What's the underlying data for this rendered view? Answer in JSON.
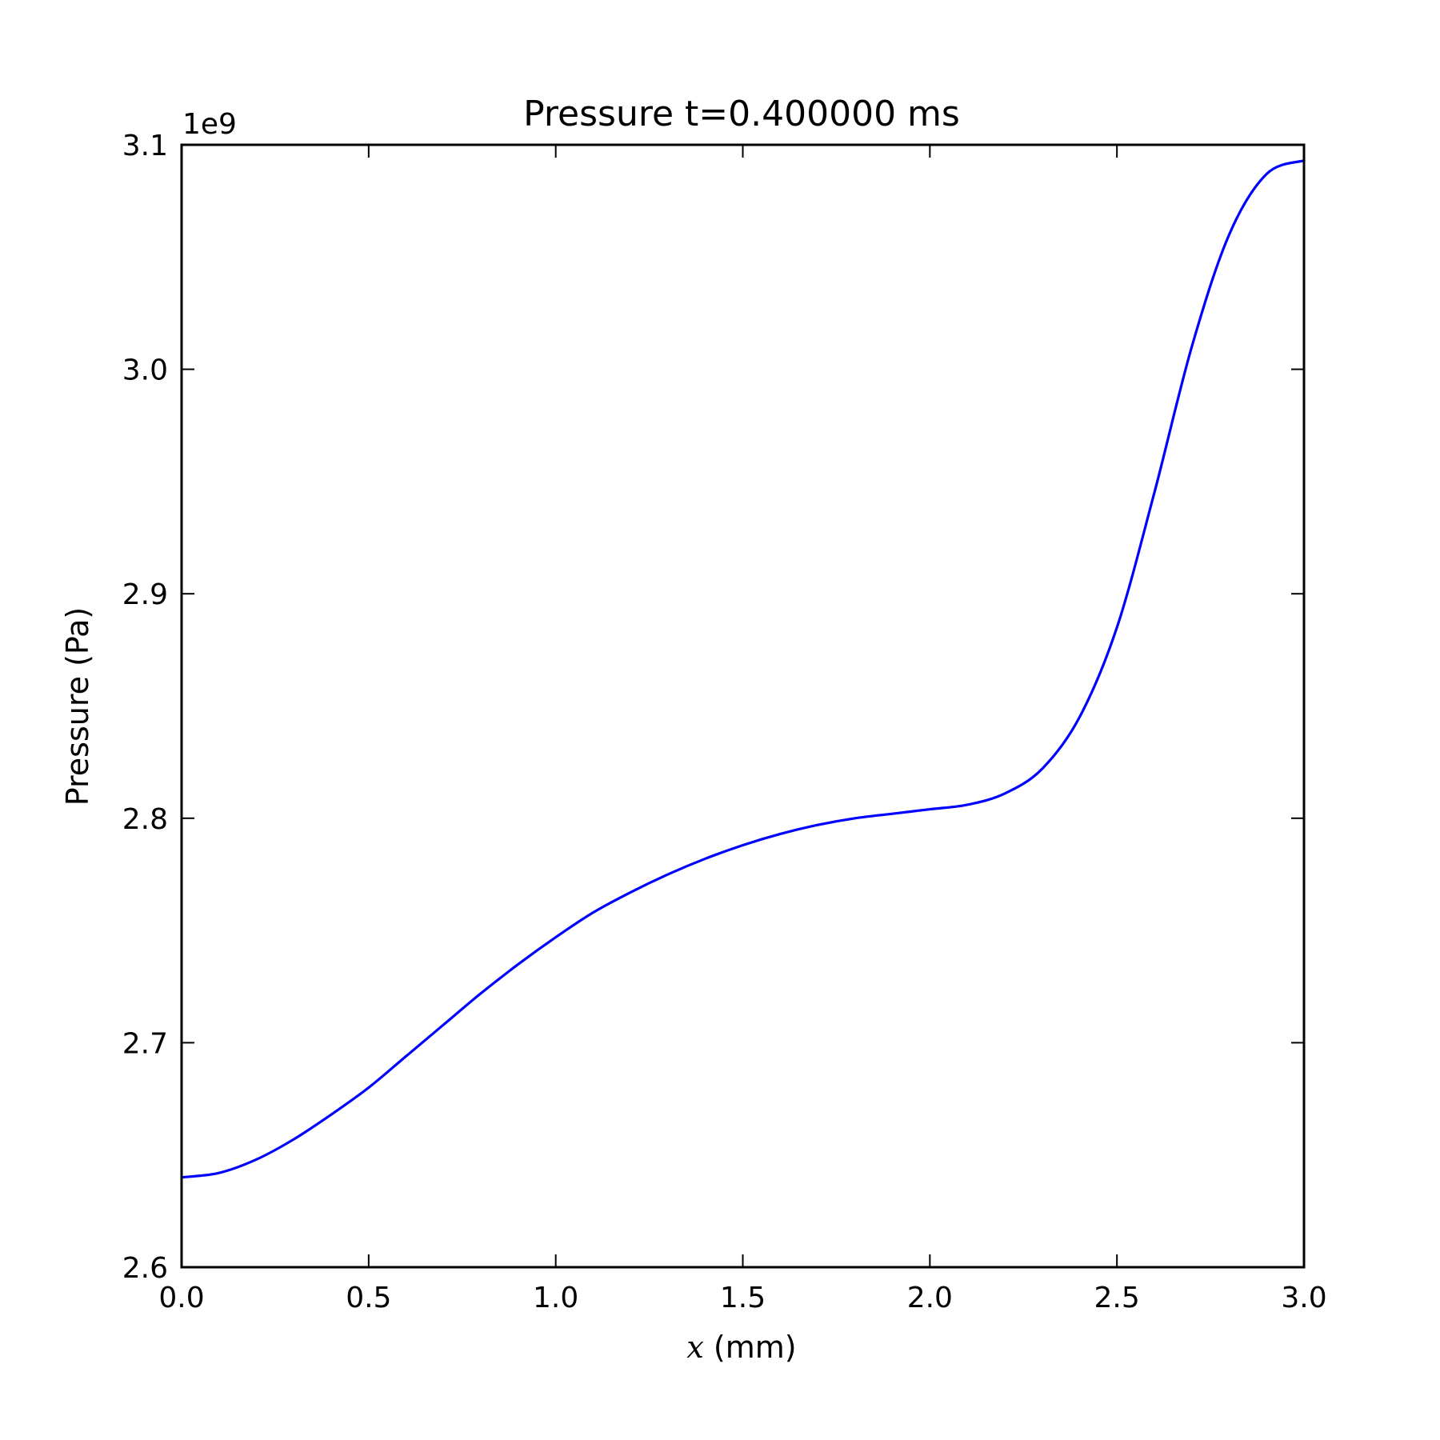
{
  "chart_data": {
    "type": "line",
    "title": "Pressure t=0.400000 ms",
    "xlabel_var": "x",
    "xlabel_unit": " (mm)",
    "ylabel": "Pressure (Pa)",
    "y_offset_label": "1e9",
    "xlim": [
      0.0,
      3.0
    ],
    "ylim": [
      2.6,
      3.1
    ],
    "x_ticks": [
      0.0,
      0.5,
      1.0,
      1.5,
      2.0,
      2.5,
      3.0
    ],
    "x_tick_labels": [
      "0.0",
      "0.5",
      "1.0",
      "1.5",
      "2.0",
      "2.5",
      "3.0"
    ],
    "y_ticks": [
      2.6,
      2.7,
      2.8,
      2.9,
      3.0,
      3.1
    ],
    "y_tick_labels": [
      "2.6",
      "2.7",
      "2.8",
      "2.9",
      "3.0",
      "3.1"
    ],
    "grid": false,
    "line_color": "#0000ff",
    "series": [
      {
        "x": [
          0.0,
          0.1,
          0.2,
          0.3,
          0.4,
          0.5,
          0.6,
          0.7,
          0.8,
          0.9,
          1.0,
          1.1,
          1.2,
          1.3,
          1.4,
          1.5,
          1.6,
          1.7,
          1.8,
          1.9,
          2.0,
          2.1,
          2.2,
          2.3,
          2.4,
          2.5,
          2.6,
          2.7,
          2.8,
          2.9,
          3.0
        ],
        "y": [
          2.64,
          2.642,
          2.648,
          2.657,
          2.668,
          2.68,
          2.694,
          2.708,
          2.722,
          2.735,
          2.747,
          2.758,
          2.767,
          2.775,
          2.782,
          2.788,
          2.793,
          2.797,
          2.8,
          2.802,
          2.804,
          2.806,
          2.811,
          2.822,
          2.845,
          2.885,
          2.945,
          3.01,
          3.06,
          3.087,
          3.093
        ]
      }
    ]
  }
}
